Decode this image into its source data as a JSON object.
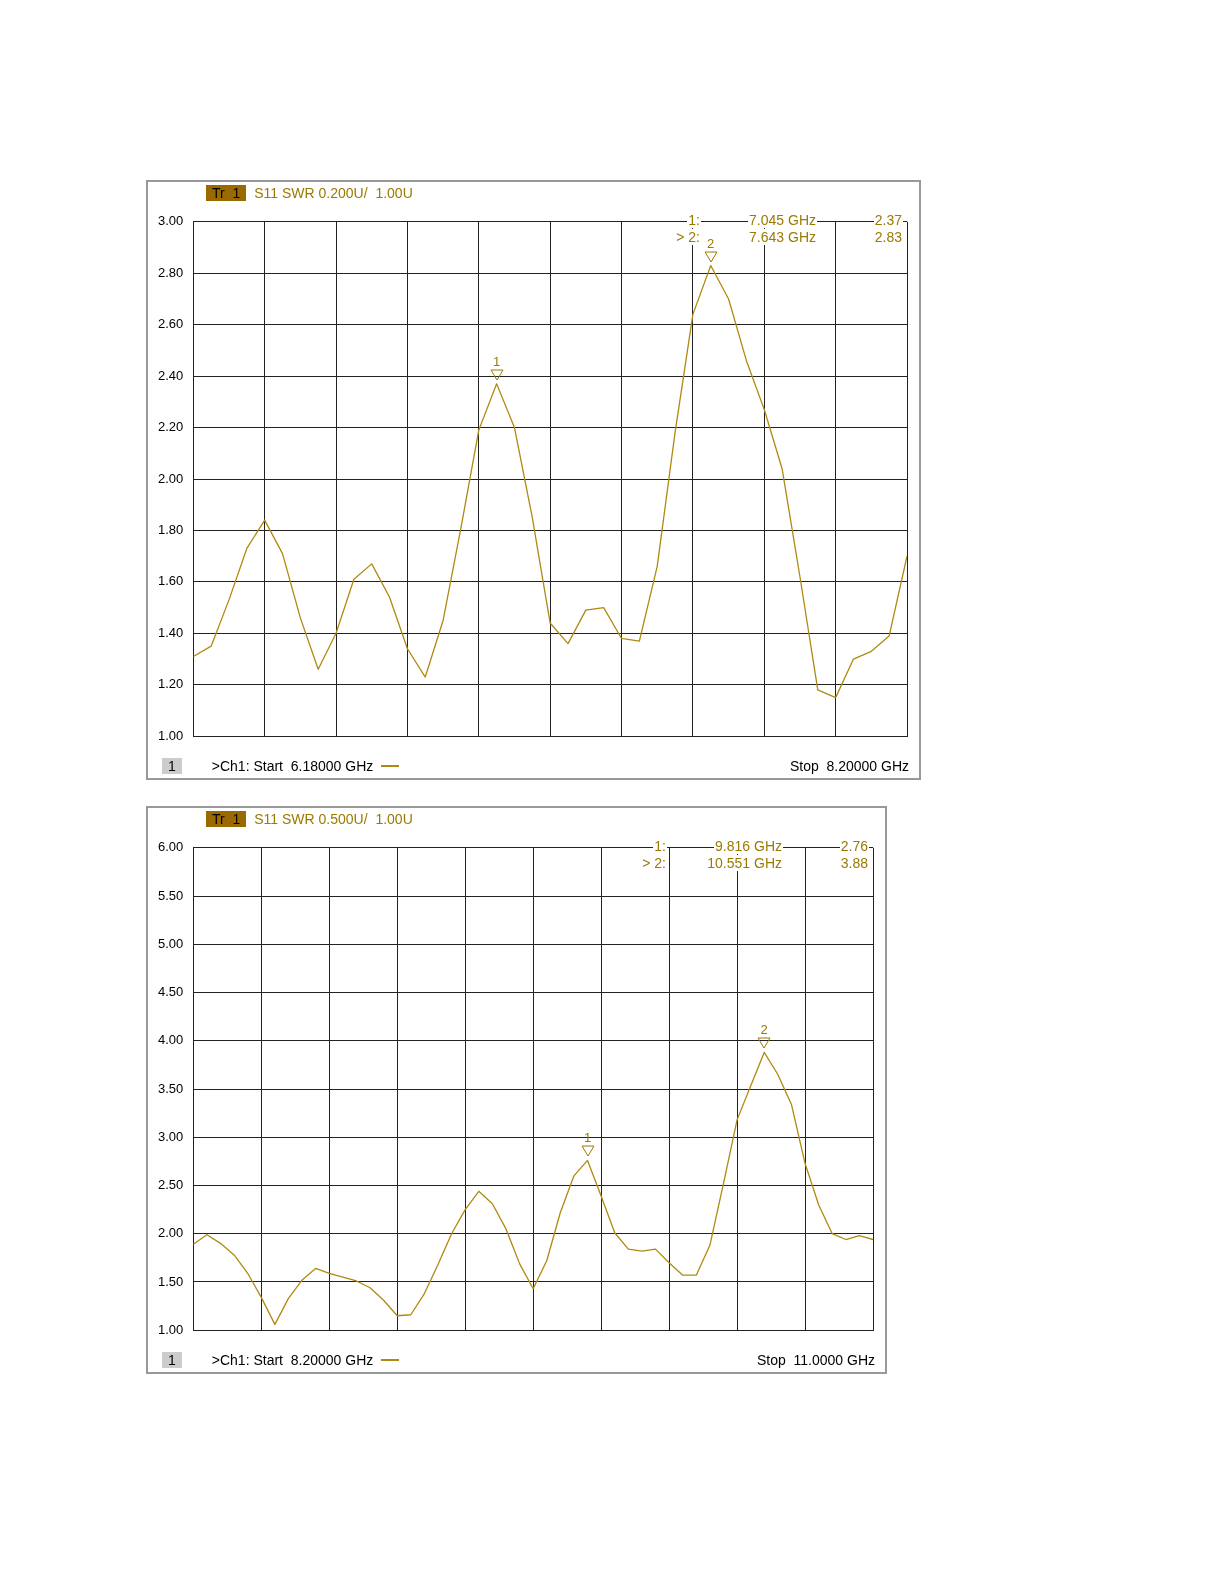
{
  "chart_data": [
    {
      "type": "line",
      "title": "S11 SWR 0.200U/  1.00U",
      "ylim": [
        1,
        3
      ],
      "tick_labels": "y",
      "grid": true,
      "legend": false,
      "line_style": "solid",
      "categories": [
        null,
        null,
        null,
        null,
        null,
        null,
        null,
        null,
        null,
        null,
        null,
        null,
        null,
        null,
        null,
        null,
        null,
        null,
        null,
        null,
        null,
        null,
        null,
        null,
        null,
        null,
        null,
        null,
        null,
        null,
        null,
        null,
        null,
        null,
        null,
        null,
        null,
        null,
        null,
        null,
        null
      ],
      "yticks": [
        {
          "value": 1,
          "label": "1.00"
        },
        {
          "value": 1.2,
          "label": "1.20"
        },
        {
          "value": 1.4,
          "label": "1.40"
        },
        {
          "value": 1.6,
          "label": "1.60"
        },
        {
          "value": 1.8,
          "label": "1.80"
        },
        {
          "value": 2,
          "label": "2.00"
        },
        {
          "value": 2.2,
          "label": "2.20"
        },
        {
          "value": 2.4,
          "label": "2.40"
        },
        {
          "value": 2.6,
          "label": "2.60"
        },
        {
          "value": 2.8,
          "label": "2.80"
        },
        {
          "value": 3,
          "label": "3.00"
        }
      ],
      "series": [
        {
          "color": "#b08a10",
          "values": [
            1.31,
            1.35,
            1.53,
            1.73,
            1.84,
            1.71,
            1.46,
            1.26,
            1.4,
            1.61,
            1.67,
            1.54,
            1.34,
            1.23,
            1.45,
            1.81,
            2.19,
            2.37,
            2.2,
            1.85,
            1.44,
            1.36,
            1.49,
            1.5,
            1.38,
            1.37,
            1.66,
            2.18,
            2.64,
            2.83,
            2.7,
            2.46,
            2.27,
            2.04,
            1.62,
            1.18,
            1.15,
            1.3,
            1.33,
            1.39,
            1.7
          ]
        }
      ],
      "annotations": [
        "Tr  1",
        "1",
        ">Ch1: Start  6.18000 GHz",
        "Stop  8.20000 GHz",
        "1:",
        "7.045 GHz",
        "2.37",
        "> 2:",
        "7.643 GHz",
        "2.83",
        {
          "text": "1",
          "y": 2.37
        },
        {
          "text": "2",
          "y": 2.83
        }
      ]
    },
    {
      "type": "line",
      "title": "S11 SWR 0.500U/  1.00U",
      "ylim": [
        1,
        6
      ],
      "tick_labels": "y",
      "grid": true,
      "legend": false,
      "line_style": "solid",
      "categories": [
        null,
        null,
        null,
        null,
        null,
        null,
        null,
        null,
        null,
        null,
        null,
        null,
        null,
        null,
        null,
        null,
        null,
        null,
        null,
        null,
        null,
        null,
        null,
        null,
        null,
        null,
        null,
        null,
        null,
        null,
        null,
        null,
        null,
        null,
        null,
        null,
        null,
        null,
        null,
        null,
        null,
        null,
        null,
        null,
        null,
        null,
        null,
        null,
        null,
        null,
        null
      ],
      "yticks": [
        {
          "value": 1,
          "label": "1.00"
        },
        {
          "value": 1.5,
          "label": "1.50"
        },
        {
          "value": 2,
          "label": "2.00"
        },
        {
          "value": 2.5,
          "label": "2.50"
        },
        {
          "value": 3,
          "label": "3.00"
        },
        {
          "value": 3.5,
          "label": "3.50"
        },
        {
          "value": 4,
          "label": "4.00"
        },
        {
          "value": 4.5,
          "label": "4.50"
        },
        {
          "value": 5,
          "label": "5.00"
        },
        {
          "value": 5.5,
          "label": "5.50"
        },
        {
          "value": 6,
          "label": "6.00"
        }
      ],
      "series": [
        {
          "color": "#b08a10",
          "values": [
            1.89,
            1.99,
            1.9,
            1.78,
            1.59,
            1.34,
            1.06,
            1.33,
            1.52,
            1.64,
            1.59,
            1.55,
            1.51,
            1.44,
            1.31,
            1.15,
            1.16,
            1.38,
            1.68,
            2.0,
            2.25,
            2.44,
            2.31,
            2.05,
            1.69,
            1.43,
            1.72,
            2.22,
            2.6,
            2.76,
            2.39,
            2.01,
            1.84,
            1.82,
            1.84,
            1.7,
            1.57,
            1.57,
            1.88,
            2.52,
            3.18,
            3.53,
            3.88,
            3.65,
            3.34,
            2.73,
            2.3,
            2.0,
            1.94,
            1.98,
            1.94
          ]
        }
      ],
      "annotations": [
        "Tr  1",
        "1",
        ">Ch1: Start  8.20000 GHz",
        "Stop  11.0000 GHz",
        "1:",
        "9.816 GHz",
        "2.76",
        "> 2:",
        "10.551 GHz",
        "3.88",
        {
          "text": "1",
          "y": 2.76
        },
        {
          "text": "2",
          "y": 3.88
        }
      ]
    }
  ]
}
